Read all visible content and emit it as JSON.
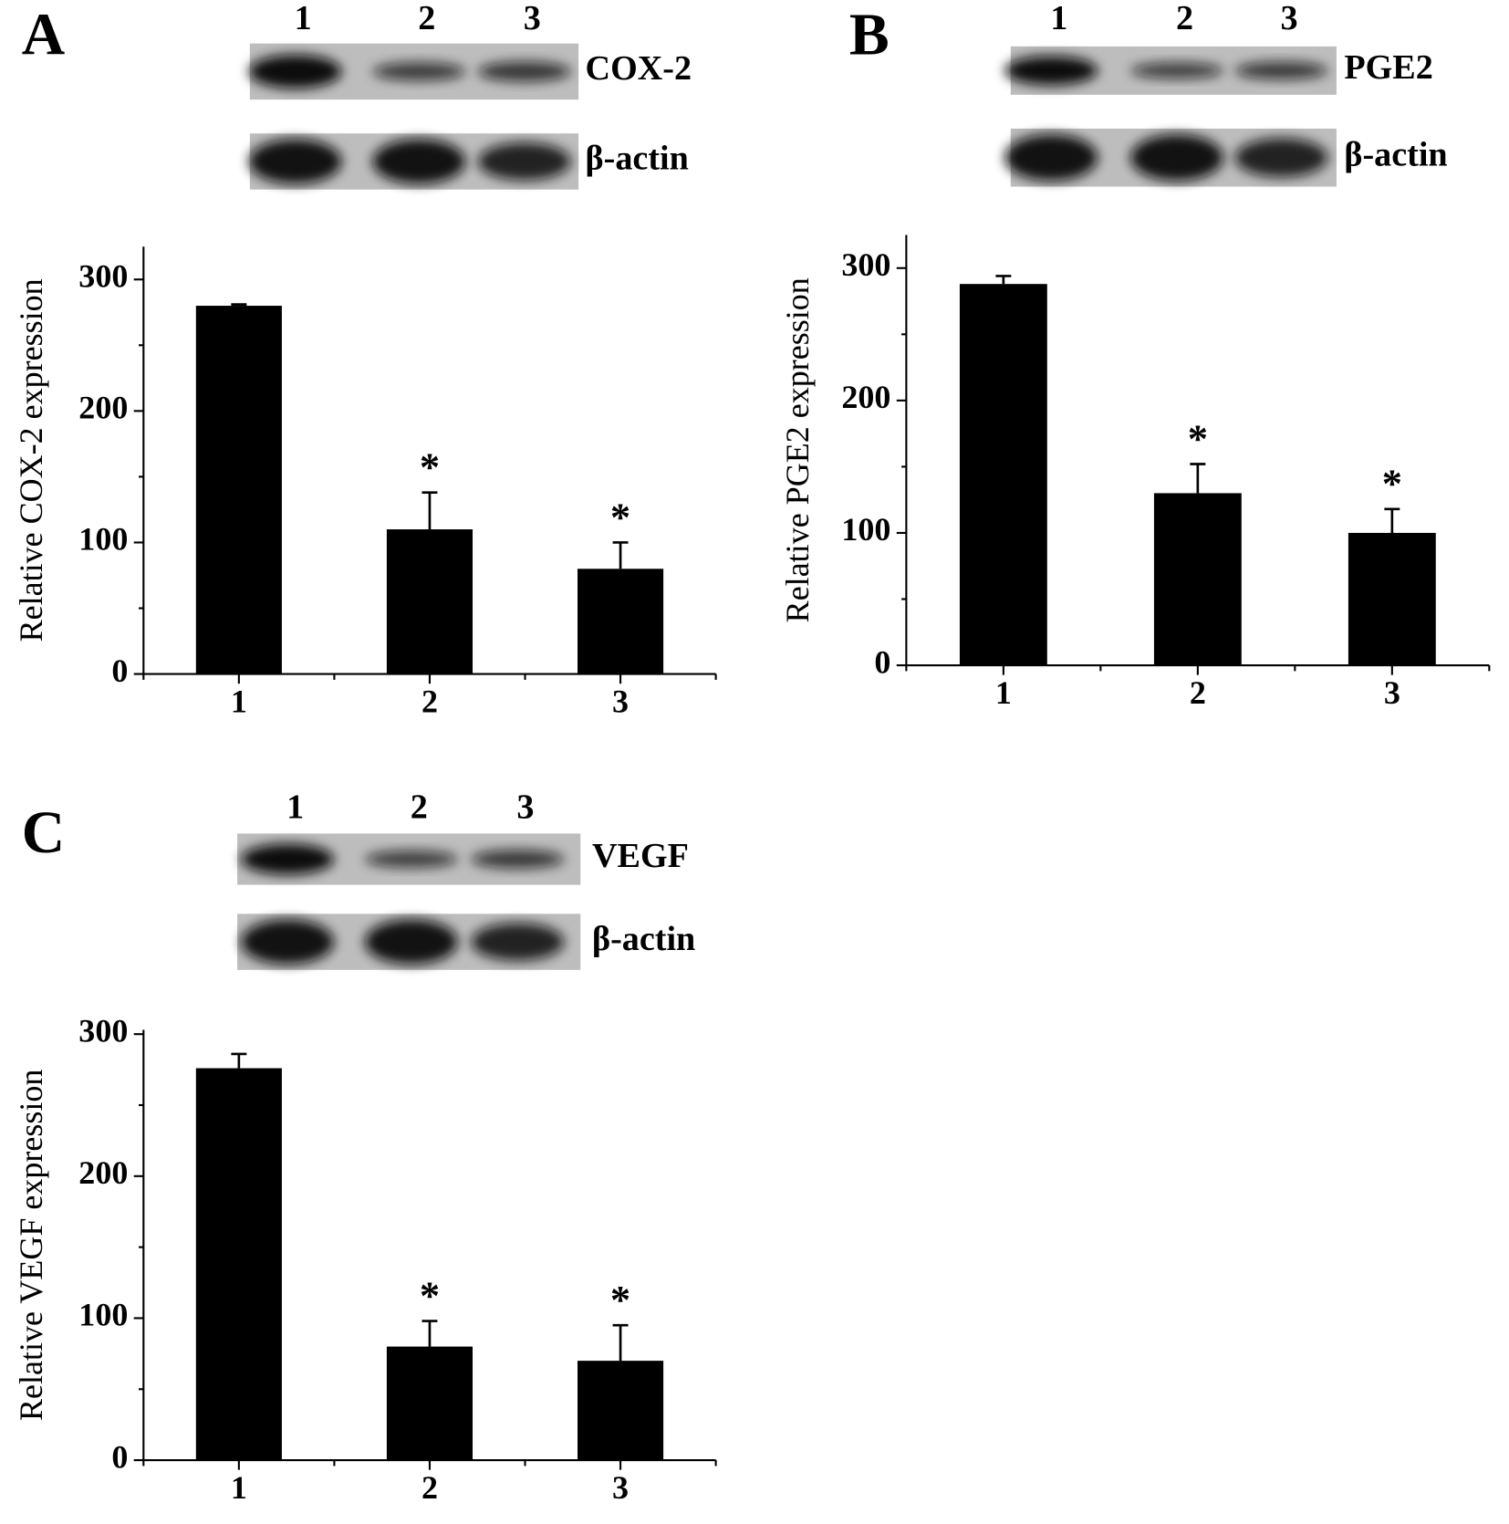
{
  "chart_data": [
    {
      "type": "bar",
      "panel": "A",
      "lanes": [
        "1",
        "2",
        "3"
      ],
      "blot_labels": [
        "COX-2",
        "β-actin"
      ],
      "ylabel": "Relative COX-2 expression",
      "categories": [
        "1",
        "2",
        "3"
      ],
      "values": [
        280,
        110,
        80
      ],
      "errors": [
        1,
        28,
        20
      ],
      "annotations": [
        null,
        "*",
        "*"
      ],
      "color": "#000000",
      "ylim": [
        0,
        325
      ],
      "yticks": [
        0,
        100,
        200,
        300
      ],
      "yminorticks": [
        50,
        150,
        250
      ]
    },
    {
      "type": "bar",
      "panel": "B",
      "lanes": [
        "1",
        "2",
        "3"
      ],
      "blot_labels": [
        "PGE2",
        "β-actin"
      ],
      "ylabel": "Relative PGE2 expression",
      "categories": [
        "1",
        "2",
        "3"
      ],
      "values": [
        288,
        130,
        100
      ],
      "errors": [
        6,
        22,
        18
      ],
      "annotations": [
        null,
        "*",
        "*"
      ],
      "color": "#000000",
      "ylim": [
        0,
        325
      ],
      "yticks": [
        0,
        100,
        200,
        300
      ],
      "yminorticks": [
        50,
        150,
        250
      ]
    },
    {
      "type": "bar",
      "panel": "C",
      "lanes": [
        "1",
        "2",
        "3"
      ],
      "blot_labels": [
        "VEGF",
        "β-actin"
      ],
      "ylabel": "Relative VEGF expression",
      "categories": [
        "1",
        "2",
        "3"
      ],
      "values": [
        276,
        80,
        70
      ],
      "errors": [
        10,
        18,
        25
      ],
      "annotations": [
        null,
        "*",
        "*"
      ],
      "color": "#000000",
      "ylim": [
        0,
        303
      ],
      "yticks": [
        0,
        100,
        200,
        300
      ],
      "yminorticks": [
        50,
        150,
        250
      ]
    }
  ]
}
